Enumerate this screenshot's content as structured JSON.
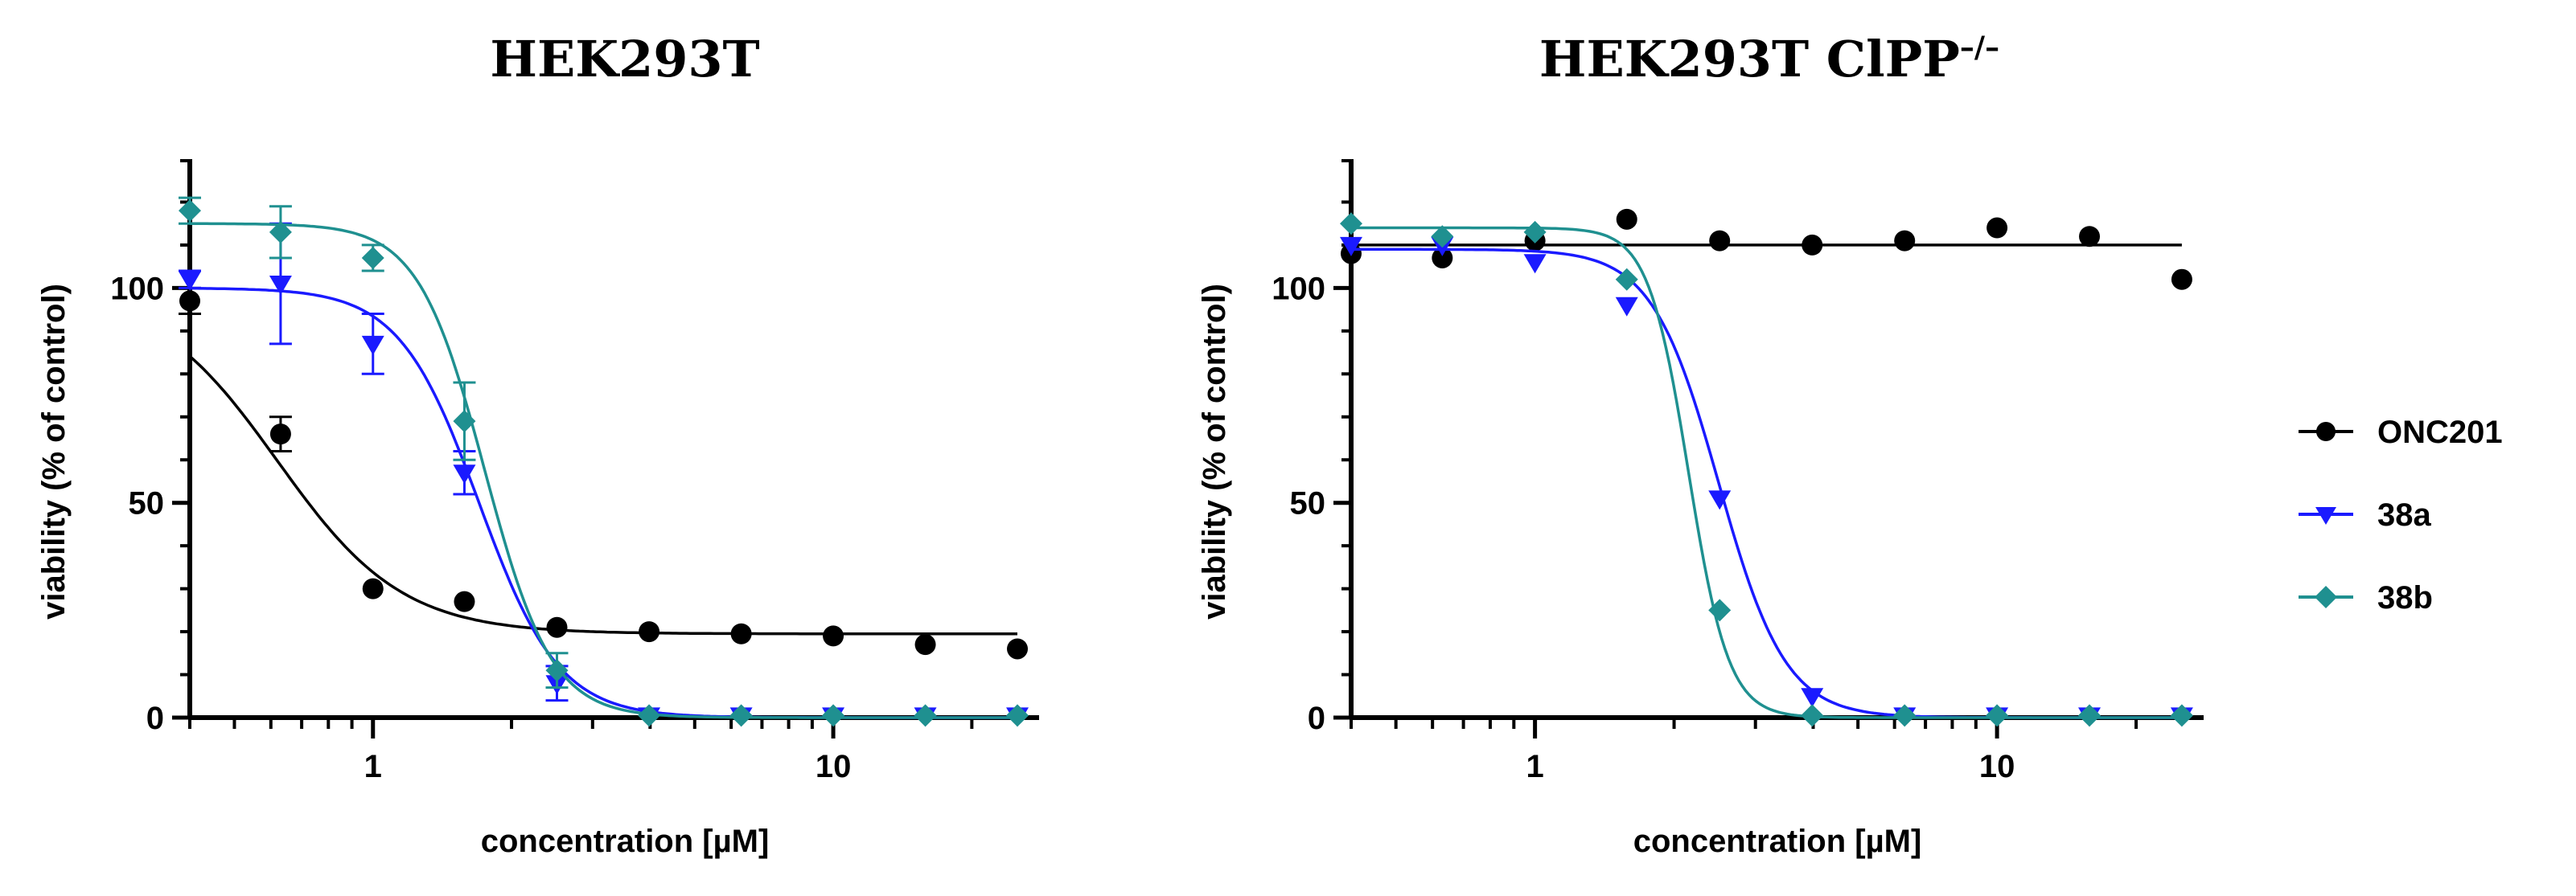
{
  "legend": {
    "placement": "right",
    "entries": [
      {
        "name": "ONC201",
        "color": "#000000",
        "marker": "circle"
      },
      {
        "name": "38a",
        "color": "#1a1aff",
        "marker": "triangle-down"
      },
      {
        "name": "38b",
        "color": "#1f9090",
        "marker": "diamond"
      }
    ]
  },
  "chart_data": [
    {
      "type": "scatter",
      "title": "HEK293T",
      "title_superscript": "",
      "xlabel": "concentration [µM]",
      "ylabel": "viability (% of control)",
      "x_scale": "log",
      "xlim": [
        0.4,
        28
      ],
      "ylim": [
        0,
        130
      ],
      "x_ticks": [
        1,
        10
      ],
      "x_ticklabels": [
        "1",
        "10"
      ],
      "y_ticks": [
        0,
        50,
        100
      ],
      "y_ticklabels": [
        "0",
        "50",
        "100"
      ],
      "grid": false,
      "series": [
        {
          "name": "ONC201",
          "color": "#000000",
          "marker": "circle",
          "x": [
            0.4,
            0.63,
            1.0,
            1.58,
            2.51,
            3.98,
            6.31,
            10.0,
            15.85,
            25.12
          ],
          "y": [
            97,
            66,
            30,
            27,
            21,
            20,
            19.5,
            19,
            17,
            16
          ],
          "error": [
            3,
            4,
            1,
            1,
            1,
            1,
            1,
            1,
            1,
            1
          ],
          "fit": {
            "top": 100,
            "bottom": 19.5,
            "ec50": 0.62,
            "hill": 3.2
          }
        },
        {
          "name": "38a",
          "color": "#1a1aff",
          "marker": "triangle-down",
          "x": [
            0.4,
            0.63,
            1.0,
            1.58,
            2.51,
            3.98,
            6.31,
            10.0,
            15.85,
            25.12
          ],
          "y": [
            102,
            101,
            87,
            57,
            8,
            0.5,
            0.5,
            0.5,
            0.5,
            0.5
          ],
          "error": [
            2,
            14,
            7,
            5,
            4,
            0.5,
            0.5,
            0.5,
            0.5,
            0.5
          ],
          "fit": {
            "top": 100,
            "bottom": 0,
            "ec50": 1.7,
            "hill": 5
          }
        },
        {
          "name": "38b",
          "color": "#1f9090",
          "marker": "diamond",
          "x": [
            0.4,
            0.63,
            1.0,
            1.58,
            2.51,
            3.98,
            6.31,
            10.0,
            15.85,
            25.12
          ],
          "y": [
            118,
            113,
            107,
            69,
            11,
            0.5,
            0.5,
            0.5,
            0.5,
            0.5
          ],
          "error": [
            3,
            6,
            3,
            9,
            4,
            0.5,
            0.5,
            0.5,
            0.5,
            0.5
          ],
          "fit": {
            "top": 115,
            "bottom": 0,
            "ec50": 1.75,
            "hill": 6
          }
        }
      ]
    },
    {
      "type": "scatter",
      "title": "HEK293T ClPP",
      "title_superscript": "–/–",
      "xlabel": "concentration [µM]",
      "ylabel": "viability (% of control)",
      "x_scale": "log",
      "xlim": [
        0.4,
        28
      ],
      "ylim": [
        0,
        130
      ],
      "x_ticks": [
        1,
        10
      ],
      "x_ticklabels": [
        "1",
        "10"
      ],
      "y_ticks": [
        0,
        50,
        100
      ],
      "y_ticklabels": [
        "0",
        "50",
        "100"
      ],
      "grid": false,
      "series": [
        {
          "name": "ONC201",
          "color": "#000000",
          "marker": "circle",
          "x": [
            0.4,
            0.63,
            1.0,
            1.58,
            2.51,
            3.98,
            6.31,
            10.0,
            15.85,
            25.12
          ],
          "y": [
            108,
            107,
            111,
            116,
            111,
            110,
            111,
            114,
            112,
            102
          ],
          "error": [
            1,
            1,
            1,
            1,
            1,
            1,
            1,
            1,
            1,
            1
          ],
          "fit": {
            "top": 110,
            "bottom": 110,
            "ec50": 9.5,
            "hill": 20
          }
        },
        {
          "name": "38a",
          "color": "#1a1aff",
          "marker": "triangle-down",
          "x": [
            0.4,
            0.63,
            1.0,
            1.58,
            2.51,
            3.98,
            6.31,
            10.0,
            15.85,
            25.12
          ],
          "y": [
            110,
            110,
            106,
            96,
            51,
            5,
            0.5,
            0.5,
            0.5,
            0.5
          ],
          "error": [
            1,
            1,
            1,
            1,
            1,
            1,
            0.5,
            0.5,
            0.5,
            0.5
          ],
          "fit": {
            "top": 109,
            "bottom": 0,
            "ec50": 2.5,
            "hill": 6
          }
        },
        {
          "name": "38b",
          "color": "#1f9090",
          "marker": "diamond",
          "x": [
            0.4,
            0.63,
            1.0,
            1.58,
            2.51,
            3.98,
            6.31,
            10.0,
            15.85,
            25.12
          ],
          "y": [
            115,
            112,
            113,
            102,
            25,
            0.5,
            0.5,
            0.5,
            0.5,
            0.5
          ],
          "error": [
            1,
            1,
            1,
            1,
            1,
            0.5,
            0.5,
            0.5,
            0.5,
            0.5
          ],
          "fit": {
            "top": 114,
            "bottom": 0,
            "ec50": 2.15,
            "hill": 10
          }
        }
      ]
    }
  ]
}
